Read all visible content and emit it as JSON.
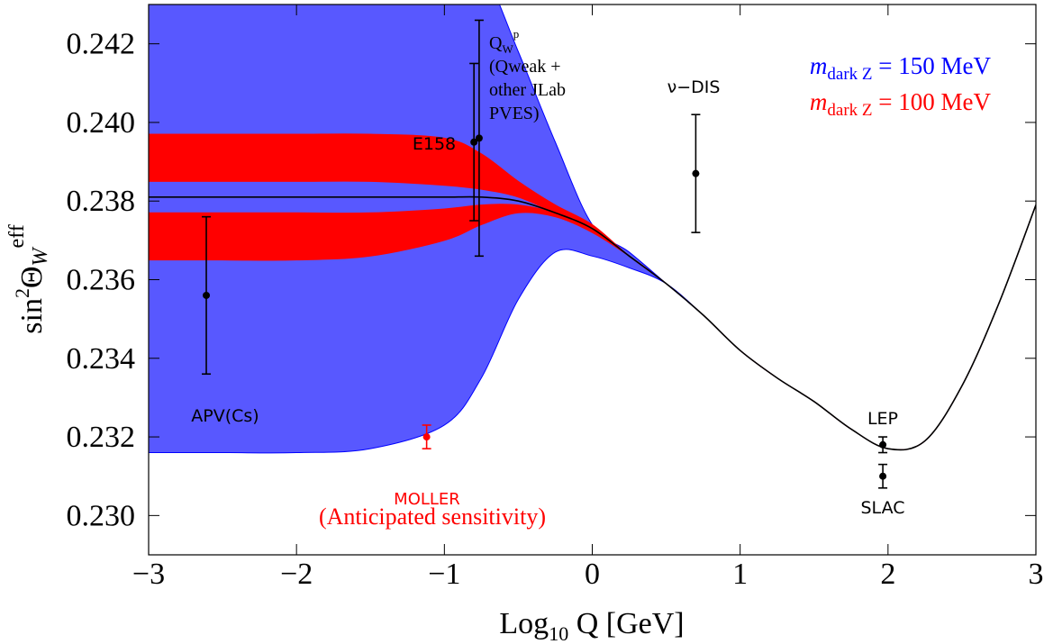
{
  "chart_data": {
    "type": "band",
    "xlabel": [
      "Log",
      "10",
      " Q [GeV]"
    ],
    "ylabel": [
      "sin",
      "2",
      "Θ",
      "W",
      "eff"
    ],
    "xlim": [
      -3,
      3
    ],
    "ylim": [
      0.229,
      0.243
    ],
    "xticks": [
      {
        "value": -3,
        "label": "−3"
      },
      {
        "value": -2,
        "label": "−2"
      },
      {
        "value": -1,
        "label": "−1"
      },
      0,
      1,
      2,
      3
    ],
    "yticks": [
      {
        "value": 0.23,
        "label": "0.230"
      },
      0.232,
      0.234,
      0.236,
      0.238,
      {
        "value": 0.24,
        "label": "0.240"
      },
      0.242
    ],
    "x": [
      -3,
      -2.5,
      -2,
      -1.5,
      -1,
      -0.75,
      -0.5,
      -0.25,
      0,
      0.25,
      0.5,
      0.75,
      1,
      1.25,
      1.5,
      1.75,
      2,
      2.25,
      2.5,
      2.75,
      3
    ],
    "curve": {
      "color": "#000000",
      "values": [
        0.2381,
        0.2381,
        0.2381,
        0.2381,
        0.2381,
        0.2381,
        0.238,
        0.2377,
        0.2373,
        0.2366,
        0.2359,
        0.2351,
        0.2342,
        0.2335,
        0.2329,
        0.2322,
        0.2317,
        0.2319,
        0.2333,
        0.2354,
        0.2379
      ]
    },
    "series": [
      {
        "name": [
          "m",
          "dark Z",
          " = 150 MeV"
        ],
        "color": "#0000ff",
        "fill": "#5858ff",
        "bands": [
          {
            "upper": [
              0.247,
              0.247,
              0.2468,
              0.2462,
              0.245,
              0.244,
              0.2418,
              0.2395,
              0.2374,
              0.2367,
              0.2359,
              0.2351,
              0.2342,
              0.2335,
              0.2329,
              0.2322,
              0.2317,
              0.2319,
              0.2333,
              0.2354,
              0.2379
            ],
            "lower": [
              0.2316,
              0.2316,
              0.2316,
              0.2317,
              0.2323,
              0.2335,
              0.2355,
              0.2367,
              0.2366,
              0.2363,
              0.2359,
              0.2351,
              0.2342,
              0.2335,
              0.2329,
              0.2322,
              0.2317,
              0.2319,
              0.2333,
              0.2354,
              0.2379
            ]
          }
        ]
      },
      {
        "name": [
          "m",
          "dark Z",
          " = 100 MeV"
        ],
        "color": "#ff0000",
        "fill": "#ff0000",
        "bands": [
          {
            "upper": [
              0.2397,
              0.2397,
              0.2397,
              0.2397,
              0.2396,
              0.2392,
              0.2385,
              0.2379,
              0.2374,
              0.2366,
              0.2359,
              0.2351,
              0.2342,
              0.2335,
              0.2329,
              0.2322,
              0.2317,
              0.2319,
              0.2333,
              0.2354,
              0.2379
            ],
            "lower": [
              0.2385,
              0.2385,
              0.2385,
              0.2385,
              0.2384,
              0.2383,
              0.2381,
              0.2377,
              0.2373,
              0.2366,
              0.2359,
              0.2351,
              0.2342,
              0.2335,
              0.2329,
              0.2322,
              0.2317,
              0.2319,
              0.2333,
              0.2354,
              0.2379
            ]
          },
          {
            "upper": [
              0.2377,
              0.2377,
              0.2377,
              0.2377,
              0.2378,
              0.2379,
              0.2379,
              0.2377,
              0.2373,
              0.2366,
              0.2359,
              0.2351,
              0.2342,
              0.2335,
              0.2329,
              0.2322,
              0.2317,
              0.2319,
              0.2333,
              0.2354,
              0.2379
            ],
            "lower": [
              0.2365,
              0.2365,
              0.2365,
              0.2366,
              0.237,
              0.2374,
              0.2377,
              0.2376,
              0.2372,
              0.2366,
              0.2359,
              0.2351,
              0.2342,
              0.2335,
              0.2329,
              0.2322,
              0.2317,
              0.2319,
              0.2333,
              0.2354,
              0.2379
            ]
          }
        ]
      }
    ],
    "points": [
      {
        "label": [
          "APV(Cs)"
        ],
        "x": -2.61,
        "y": 0.2356,
        "err": 0.002,
        "color": "#000000"
      },
      {
        "label": [
          "E158"
        ],
        "x": -0.8,
        "y": 0.2395,
        "err": 0.002,
        "color": "#000000"
      },
      {
        "label": [
          "Q",
          "W",
          "p",
          "(Qweak +",
          "other JLab",
          "PVES)"
        ],
        "x": -0.765,
        "y": 0.2396,
        "err": 0.003,
        "color": "#000000"
      },
      {
        "label": [
          "ν−DIS"
        ],
        "x": 0.7,
        "y": 0.2387,
        "err": 0.0015,
        "color": "#000000"
      },
      {
        "label": [
          "LEP"
        ],
        "x": 1.965,
        "y": 0.2318,
        "err": 0.0002,
        "color": "#000000"
      },
      {
        "label": [
          "SLAC"
        ],
        "x": 1.965,
        "y": 0.231,
        "err": 0.0003,
        "color": "#000000"
      },
      {
        "label": [
          "MOLLER",
          "(Anticipated sensitivity)"
        ],
        "x": -1.12,
        "y": 0.232,
        "err": 0.0003,
        "color": "#ff0000"
      }
    ]
  }
}
